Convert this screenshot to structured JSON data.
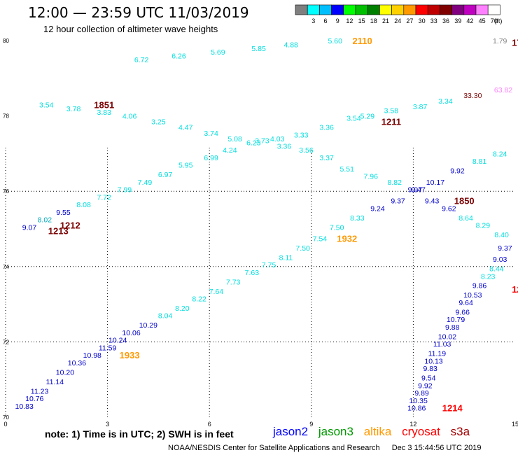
{
  "header": {
    "title": "12:00 — 23:59 UTC 11/03/2019",
    "subtitle": "12 hour collection of altimeter wave heights"
  },
  "colorbar": {
    "unit": "(ft)",
    "bins": [
      {
        "label": "",
        "color": "#7f7f7f"
      },
      {
        "label": "3",
        "color": "#00ffff"
      },
      {
        "label": "6",
        "color": "#00bfff"
      },
      {
        "label": "9",
        "color": "#0000ff"
      },
      {
        "label": "12",
        "color": "#00ff00"
      },
      {
        "label": "15",
        "color": "#00c000"
      },
      {
        "label": "18",
        "color": "#008000"
      },
      {
        "label": "21",
        "color": "#ffff00"
      },
      {
        "label": "24",
        "color": "#ffd000"
      },
      {
        "label": "27",
        "color": "#ff9900"
      },
      {
        "label": "30",
        "color": "#ff0000"
      },
      {
        "label": "33",
        "color": "#c00000"
      },
      {
        "label": "36",
        "color": "#800000"
      },
      {
        "label": "39",
        "color": "#800080"
      },
      {
        "label": "42",
        "color": "#c000c0"
      },
      {
        "label": "45",
        "color": "#ff80ff"
      },
      {
        "label": "70",
        "color": "#ffffff"
      }
    ]
  },
  "axes": {
    "y_labels": [
      {
        "lat": 80,
        "label": "80"
      },
      {
        "lat": 78,
        "label": "78"
      },
      {
        "lat": 76,
        "label": "76"
      },
      {
        "lat": 74,
        "label": "74"
      },
      {
        "lat": 72,
        "label": "72"
      },
      {
        "lat": 70,
        "label": "70"
      }
    ],
    "x_labels": [
      {
        "lon": 0,
        "label": "0"
      },
      {
        "lon": 3,
        "label": "3"
      },
      {
        "lon": 6,
        "label": "6"
      },
      {
        "lon": 9,
        "label": "9"
      },
      {
        "lon": 12,
        "label": "12"
      },
      {
        "lon": 15,
        "label": "15"
      }
    ]
  },
  "satellites": [
    {
      "name": "jason2",
      "color": "#0000ff"
    },
    {
      "name": "jason3",
      "color": "#009900"
    },
    {
      "name": "altika",
      "color": "#ff9900"
    },
    {
      "name": "cryosat",
      "color": "#ff0000"
    },
    {
      "name": "s3a",
      "color": "#a00000"
    }
  ],
  "colors": {
    "cyan": "#00dede",
    "blue": "#0000cc",
    "teal": "#00aabb",
    "dark": "#7b0000",
    "orange": "#ff9900",
    "red": "#ff0000",
    "gray": "#808080",
    "pink": "#ff80ff",
    "grid": "#000000"
  },
  "wave_heights": [
    {
      "text": "6.72",
      "lon": 4.0,
      "lat": 79.5,
      "color": "cyan"
    },
    {
      "text": "6.26",
      "lon": 5.1,
      "lat": 79.6,
      "color": "cyan"
    },
    {
      "text": "5.69",
      "lon": 6.25,
      "lat": 79.7,
      "color": "cyan"
    },
    {
      "text": "5.85",
      "lon": 7.45,
      "lat": 79.8,
      "color": "cyan"
    },
    {
      "text": "4.88",
      "lon": 8.4,
      "lat": 79.9,
      "color": "cyan"
    },
    {
      "text": "5.60",
      "lon": 9.7,
      "lat": 80.0,
      "color": "cyan"
    },
    {
      "text": "1.79",
      "lon": 14.55,
      "lat": 80.0,
      "color": "gray"
    },
    {
      "text": "3.54",
      "lon": 1.2,
      "lat": 78.3,
      "color": "cyan"
    },
    {
      "text": "3.78",
      "lon": 2.0,
      "lat": 78.2,
      "color": "cyan"
    },
    {
      "text": "3.83",
      "lon": 2.9,
      "lat": 78.1,
      "color": "cyan"
    },
    {
      "text": "4.06",
      "lon": 3.65,
      "lat": 78.0,
      "color": "cyan"
    },
    {
      "text": "3.25",
      "lon": 4.5,
      "lat": 77.85,
      "color": "cyan"
    },
    {
      "text": "4.47",
      "lon": 5.3,
      "lat": 77.7,
      "color": "cyan"
    },
    {
      "text": "3.74",
      "lon": 6.05,
      "lat": 77.55,
      "color": "cyan"
    },
    {
      "text": "5.08",
      "lon": 6.75,
      "lat": 77.4,
      "color": "cyan"
    },
    {
      "text": "4.24",
      "lon": 6.6,
      "lat": 77.1,
      "color": "cyan"
    },
    {
      "text": "6.23",
      "lon": 7.3,
      "lat": 77.3,
      "color": "cyan"
    },
    {
      "text": "3.73",
      "lon": 7.55,
      "lat": 77.35,
      "color": "cyan"
    },
    {
      "text": "4.03",
      "lon": 8.0,
      "lat": 77.4,
      "color": "cyan"
    },
    {
      "text": "3.36",
      "lon": 8.2,
      "lat": 77.2,
      "color": "cyan"
    },
    {
      "text": "3.33",
      "lon": 8.7,
      "lat": 77.5,
      "color": "cyan"
    },
    {
      "text": "3.56",
      "lon": 8.85,
      "lat": 77.1,
      "color": "cyan"
    },
    {
      "text": "3.36",
      "lon": 9.45,
      "lat": 77.7,
      "color": "cyan"
    },
    {
      "text": "3.37",
      "lon": 9.45,
      "lat": 76.9,
      "color": "cyan"
    },
    {
      "text": "3.54",
      "lon": 10.25,
      "lat": 77.95,
      "color": "cyan"
    },
    {
      "text": "5.29",
      "lon": 10.65,
      "lat": 78.0,
      "color": "cyan"
    },
    {
      "text": "3.58",
      "lon": 11.35,
      "lat": 78.15,
      "color": "cyan"
    },
    {
      "text": "3.87",
      "lon": 12.2,
      "lat": 78.25,
      "color": "cyan"
    },
    {
      "text": "3.34",
      "lon": 12.95,
      "lat": 78.4,
      "color": "cyan"
    },
    {
      "text": "33.30",
      "lon": 13.75,
      "lat": 78.55,
      "color": "dark"
    },
    {
      "text": "63.82",
      "lon": 14.65,
      "lat": 78.7,
      "color": "pink"
    },
    {
      "text": "5.95",
      "lon": 5.3,
      "lat": 76.7,
      "color": "cyan"
    },
    {
      "text": "6.99",
      "lon": 6.05,
      "lat": 76.9,
      "color": "cyan"
    },
    {
      "text": "6.97",
      "lon": 4.7,
      "lat": 76.45,
      "color": "cyan"
    },
    {
      "text": "7.49",
      "lon": 4.1,
      "lat": 76.25,
      "color": "cyan"
    },
    {
      "text": "7.99",
      "lon": 3.5,
      "lat": 76.05,
      "color": "cyan"
    },
    {
      "text": "7.72",
      "lon": 2.9,
      "lat": 75.85,
      "color": "cyan"
    },
    {
      "text": "8.08",
      "lon": 2.3,
      "lat": 75.65,
      "color": "cyan"
    },
    {
      "text": "9.55",
      "lon": 1.7,
      "lat": 75.45,
      "color": "blue"
    },
    {
      "text": "8.02",
      "lon": 1.15,
      "lat": 75.25,
      "color": "teal"
    },
    {
      "text": "9.07",
      "lon": 0.7,
      "lat": 75.05,
      "color": "blue"
    },
    {
      "text": "5.51",
      "lon": 10.05,
      "lat": 76.6,
      "color": "cyan"
    },
    {
      "text": "7.96",
      "lon": 10.75,
      "lat": 76.4,
      "color": "cyan"
    },
    {
      "text": "8.82",
      "lon": 11.45,
      "lat": 76.25,
      "color": "cyan"
    },
    {
      "text": "9.97",
      "lon": 12.05,
      "lat": 76.05,
      "color": "blue"
    },
    {
      "text": "9.47",
      "lon": 12.15,
      "lat": 76.05,
      "color": "blue"
    },
    {
      "text": "10.17",
      "lon": 12.65,
      "lat": 76.25,
      "color": "blue"
    },
    {
      "text": "9.92",
      "lon": 13.3,
      "lat": 76.55,
      "color": "blue"
    },
    {
      "text": "8.81",
      "lon": 13.95,
      "lat": 76.8,
      "color": "cyan"
    },
    {
      "text": "8.24",
      "lon": 14.55,
      "lat": 77.0,
      "color": "cyan"
    },
    {
      "text": "9.37",
      "lon": 11.55,
      "lat": 75.75,
      "color": "blue"
    },
    {
      "text": "9.43",
      "lon": 12.55,
      "lat": 75.75,
      "color": "blue"
    },
    {
      "text": "9.62",
      "lon": 13.05,
      "lat": 75.55,
      "color": "blue"
    },
    {
      "text": "9.24",
      "lon": 10.95,
      "lat": 75.55,
      "color": "blue"
    },
    {
      "text": "8.33",
      "lon": 10.35,
      "lat": 75.3,
      "color": "cyan"
    },
    {
      "text": "8.64",
      "lon": 13.55,
      "lat": 75.3,
      "color": "cyan"
    },
    {
      "text": "8.29",
      "lon": 14.05,
      "lat": 75.1,
      "color": "cyan"
    },
    {
      "text": "7.50",
      "lon": 9.75,
      "lat": 75.05,
      "color": "cyan"
    },
    {
      "text": "7.54",
      "lon": 9.25,
      "lat": 74.75,
      "color": "cyan"
    },
    {
      "text": "7.50",
      "lon": 8.75,
      "lat": 74.5,
      "color": "cyan"
    },
    {
      "text": "8.11",
      "lon": 8.25,
      "lat": 74.25,
      "color": "cyan"
    },
    {
      "text": "7.75",
      "lon": 7.75,
      "lat": 74.05,
      "color": "cyan"
    },
    {
      "text": "7.63",
      "lon": 7.25,
      "lat": 73.85,
      "color": "cyan"
    },
    {
      "text": "7.73",
      "lon": 6.7,
      "lat": 73.6,
      "color": "cyan"
    },
    {
      "text": "7.64",
      "lon": 6.2,
      "lat": 73.35,
      "color": "cyan"
    },
    {
      "text": "8.22",
      "lon": 5.7,
      "lat": 73.15,
      "color": "cyan"
    },
    {
      "text": "8.20",
      "lon": 5.2,
      "lat": 72.9,
      "color": "cyan"
    },
    {
      "text": "8.04",
      "lon": 4.7,
      "lat": 72.7,
      "color": "cyan"
    },
    {
      "text": "10.29",
      "lon": 4.2,
      "lat": 72.45,
      "color": "blue"
    },
    {
      "text": "10.06",
      "lon": 3.7,
      "lat": 72.25,
      "color": "blue"
    },
    {
      "text": "10.24",
      "lon": 3.3,
      "lat": 72.05,
      "color": "blue"
    },
    {
      "text": "11.59",
      "lon": 3.0,
      "lat": 71.85,
      "color": "blue"
    },
    {
      "text": "10.98",
      "lon": 2.55,
      "lat": 71.65,
      "color": "blue"
    },
    {
      "text": "10.36",
      "lon": 2.1,
      "lat": 71.45,
      "color": "blue"
    },
    {
      "text": "10.20",
      "lon": 1.75,
      "lat": 71.2,
      "color": "blue"
    },
    {
      "text": "11.14",
      "lon": 1.45,
      "lat": 70.95,
      "color": "blue"
    },
    {
      "text": "11.23",
      "lon": 1.0,
      "lat": 70.7,
      "color": "blue"
    },
    {
      "text": "10.76",
      "lon": 0.85,
      "lat": 70.5,
      "color": "blue"
    },
    {
      "text": "10.83",
      "lon": 0.55,
      "lat": 70.3,
      "color": "blue"
    },
    {
      "text": "8.40",
      "lon": 14.6,
      "lat": 74.85,
      "color": "cyan"
    },
    {
      "text": "9.37",
      "lon": 14.7,
      "lat": 74.5,
      "color": "blue"
    },
    {
      "text": "9.03",
      "lon": 14.55,
      "lat": 74.2,
      "color": "blue"
    },
    {
      "text": "8.44",
      "lon": 14.45,
      "lat": 73.95,
      "color": "cyan"
    },
    {
      "text": "8.23",
      "lon": 14.2,
      "lat": 73.75,
      "color": "cyan"
    },
    {
      "text": "9.86",
      "lon": 13.95,
      "lat": 73.5,
      "color": "blue"
    },
    {
      "text": "10.53",
      "lon": 13.75,
      "lat": 73.25,
      "color": "blue"
    },
    {
      "text": "9.64",
      "lon": 13.55,
      "lat": 73.05,
      "color": "blue"
    },
    {
      "text": "9.66",
      "lon": 13.45,
      "lat": 72.8,
      "color": "blue"
    },
    {
      "text": "10.79",
      "lon": 13.25,
      "lat": 72.6,
      "color": "blue"
    },
    {
      "text": "9.88",
      "lon": 13.15,
      "lat": 72.4,
      "color": "blue"
    },
    {
      "text": "10.02",
      "lon": 13.0,
      "lat": 72.15,
      "color": "blue"
    },
    {
      "text": "11.03",
      "lon": 12.85,
      "lat": 71.95,
      "color": "blue"
    },
    {
      "text": "11.19",
      "lon": 12.7,
      "lat": 71.7,
      "color": "blue"
    },
    {
      "text": "10.13",
      "lon": 12.6,
      "lat": 71.5,
      "color": "blue"
    },
    {
      "text": "9.83",
      "lon": 12.5,
      "lat": 71.3,
      "color": "blue"
    },
    {
      "text": "9.54",
      "lon": 12.45,
      "lat": 71.05,
      "color": "blue"
    },
    {
      "text": "9.92",
      "lon": 12.35,
      "lat": 70.85,
      "color": "blue"
    },
    {
      "text": "9.89",
      "lon": 12.25,
      "lat": 70.65,
      "color": "blue"
    },
    {
      "text": "10.35",
      "lon": 12.15,
      "lat": 70.45,
      "color": "blue"
    },
    {
      "text": "10.86",
      "lon": 12.1,
      "lat": 70.25,
      "color": "blue"
    }
  ],
  "pass_times": [
    {
      "text": "2110",
      "lon": 10.5,
      "lat": 80.0,
      "color": "orange"
    },
    {
      "text": "17",
      "lon": 15.05,
      "lat": 79.95,
      "color": "dark"
    },
    {
      "text": "1851",
      "lon": 2.9,
      "lat": 78.3,
      "color": "dark"
    },
    {
      "text": "1211",
      "lon": 11.35,
      "lat": 77.85,
      "color": "dark"
    },
    {
      "text": "1212",
      "lon": 1.9,
      "lat": 75.1,
      "color": "dark"
    },
    {
      "text": "1213",
      "lon": 1.55,
      "lat": 74.95,
      "color": "dark"
    },
    {
      "text": "1850",
      "lon": 13.5,
      "lat": 75.75,
      "color": "dark"
    },
    {
      "text": "1932",
      "lon": 10.05,
      "lat": 74.75,
      "color": "orange"
    },
    {
      "text": "1933",
      "lon": 3.65,
      "lat": 71.65,
      "color": "orange"
    },
    {
      "text": "12",
      "lon": 15.05,
      "lat": 73.4,
      "color": "red"
    },
    {
      "text": "1214",
      "lon": 13.15,
      "lat": 70.25,
      "color": "red"
    }
  ],
  "footer": {
    "note": "note:  1) Time is in UTC;  2) SWH is in feet",
    "credit": "NOAA/NESDIS Center for Satellite Applications and Research",
    "timestamp": "Dec  3 15:44:56 UTC 2019"
  }
}
